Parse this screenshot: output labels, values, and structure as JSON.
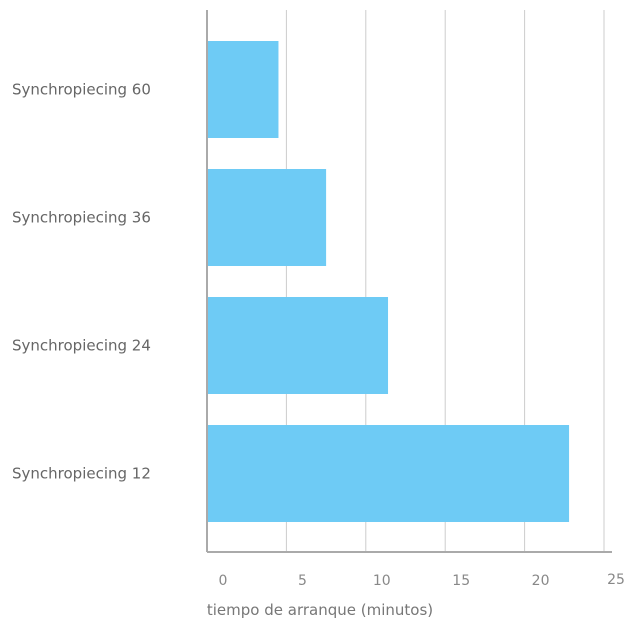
{
  "chart_data": {
    "type": "bar",
    "orientation": "horizontal",
    "categories": [
      "Synchropiecing 60",
      "Synchropiecing 36",
      "Synchropiecing 24",
      "Synchropiecing 12"
    ],
    "values": [
      4.5,
      7.5,
      11.4,
      22.8
    ],
    "xlabel": "tiempo de arranque (minutos)",
    "xlim": [
      0,
      25
    ],
    "xticks": [
      0,
      5,
      10,
      15,
      20,
      25
    ],
    "grid": true,
    "bar_color": "#6ecbf5"
  }
}
